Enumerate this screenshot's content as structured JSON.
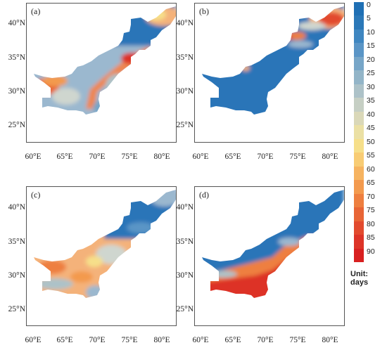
{
  "panels": [
    {
      "label": "(a)"
    },
    {
      "label": "(b)"
    },
    {
      "label": "(c)"
    },
    {
      "label": "(d)"
    }
  ],
  "y_ticks": [
    "40°N",
    "35°N",
    "30°N",
    "25°N"
  ],
  "x_ticks": [
    "60°E",
    "65°E",
    "70°E",
    "75°E",
    "80°E"
  ],
  "legend": {
    "values": [
      "0",
      "5",
      "10",
      "15",
      "20",
      "25",
      "30",
      "35",
      "40",
      "45",
      "50",
      "55",
      "60",
      "65",
      "70",
      "75",
      "80",
      "85",
      "90"
    ],
    "colors": [
      "#1f6fb4",
      "#2b78b8",
      "#3f86c0",
      "#5a95c6",
      "#77a6c8",
      "#93b5c8",
      "#adc2c8",
      "#c6cfc4",
      "#dad8b8",
      "#ebe0a4",
      "#f6df8a",
      "#f8cc74",
      "#f6b360",
      "#f39a4e",
      "#ee7f40",
      "#e86536",
      "#e24a2e",
      "#dd3428",
      "#d82020"
    ],
    "unit": "Unit: days"
  },
  "colors": {
    "blue": "#2a74b8",
    "light_blue": "#9bb8cf",
    "pale": "#cfd6cf",
    "light_orange": "#f4b27a",
    "orange": "#ee8650",
    "red": "#dd3328"
  }
}
